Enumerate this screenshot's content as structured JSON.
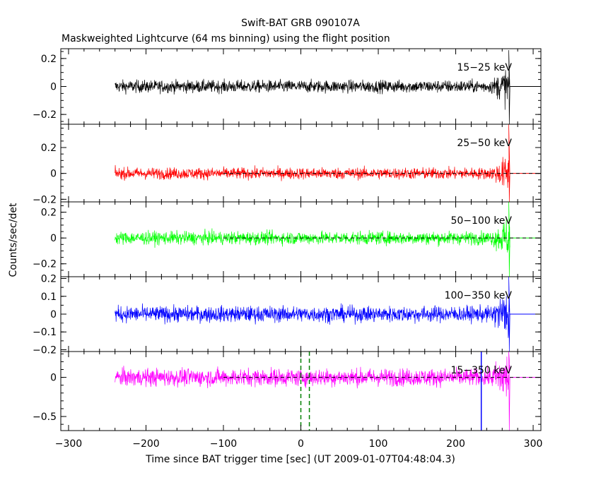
{
  "title": "Swift-BAT GRB 090107A",
  "subtitle": "Maskweighted Lightcurve (64 ms binning) using the flight position",
  "ylabel": "Counts/sec/det",
  "xlabel": "Time since BAT trigger time [sec] (UT 2009-01-07T04:48:04.3)",
  "chart_data": {
    "type": "line",
    "title": "Swift-BAT GRB 090107A",
    "subtitle": "Maskweighted Lightcurve (64 ms binning) using the flight position",
    "xlabel": "Time since BAT trigger time [sec] (UT 2009-01-07T04:48:04.3)",
    "ylabel": "Counts/sec/det",
    "xlim": [
      -310,
      310
    ],
    "x_ticks": [
      -300,
      -200,
      -100,
      0,
      100,
      200,
      300
    ],
    "x_tick_labels": [
      "−300",
      "−200",
      "−100",
      "0",
      "100",
      "200",
      "300"
    ],
    "data_span": [
      -240,
      270
    ],
    "zero_dashed_span": [
      -100,
      310
    ],
    "grid": false,
    "panels": [
      {
        "band": "15−25 keV",
        "color": "#000000",
        "ylim": [
          -0.27,
          0.27
        ],
        "yticks": [
          -0.2,
          0,
          0.2
        ],
        "ytick_labels": [
          "−0.2",
          "0",
          "0.2"
        ],
        "noise_sigma": 0.022,
        "tail_peak": [
          0.26,
          -0.27
        ],
        "dashed_zero": false
      },
      {
        "band": "25−50 keV",
        "color": "#ff0000",
        "ylim": [
          -0.22,
          0.38
        ],
        "yticks": [
          -0.2,
          0,
          0.2
        ],
        "ytick_labels": [
          "−0.2",
          "0",
          "0.2"
        ],
        "noise_sigma": 0.022,
        "tail_peak": [
          0.38,
          -0.22
        ],
        "dashed_zero": true
      },
      {
        "band": "50−100 keV",
        "color": "#00ff00",
        "ylim": [
          -0.3,
          0.28
        ],
        "yticks": [
          -0.2,
          0,
          0.2
        ],
        "ytick_labels": [
          "−0.2",
          "0",
          "0.2"
        ],
        "noise_sigma": 0.025,
        "tail_peak": [
          0.28,
          -0.3
        ],
        "dashed_zero": true
      },
      {
        "band": "100−350 keV",
        "color": "#0000ff",
        "ylim": [
          -0.21,
          0.21
        ],
        "yticks": [
          -0.2,
          -0.1,
          0,
          0.1,
          0.2
        ],
        "ytick_labels": [
          "−0.2",
          "−0.1",
          "0",
          "0.1",
          "0.2"
        ],
        "noise_sigma": 0.022,
        "tail_peak": [
          0.21,
          -0.21
        ],
        "dashed_zero": false
      },
      {
        "band": "15−350 keV",
        "color": "#ff00ff",
        "ylim": [
          -0.68,
          0.33
        ],
        "yticks": [
          -0.5,
          0
        ],
        "ytick_labels": [
          "−0.5",
          "0"
        ],
        "noise_sigma": 0.055,
        "tail_peak": [
          0.33,
          -0.68
        ],
        "dashed_zero": true
      }
    ],
    "markers": [
      {
        "x": 0,
        "color": "#008000",
        "style": "dashed",
        "panel": "15−350 keV"
      },
      {
        "x": 11,
        "color": "#008000",
        "style": "dashed",
        "panel": "15−350 keV"
      },
      {
        "x": 233,
        "color": "#0000ff",
        "style": "solid",
        "panel": "15−350 keV"
      }
    ]
  }
}
